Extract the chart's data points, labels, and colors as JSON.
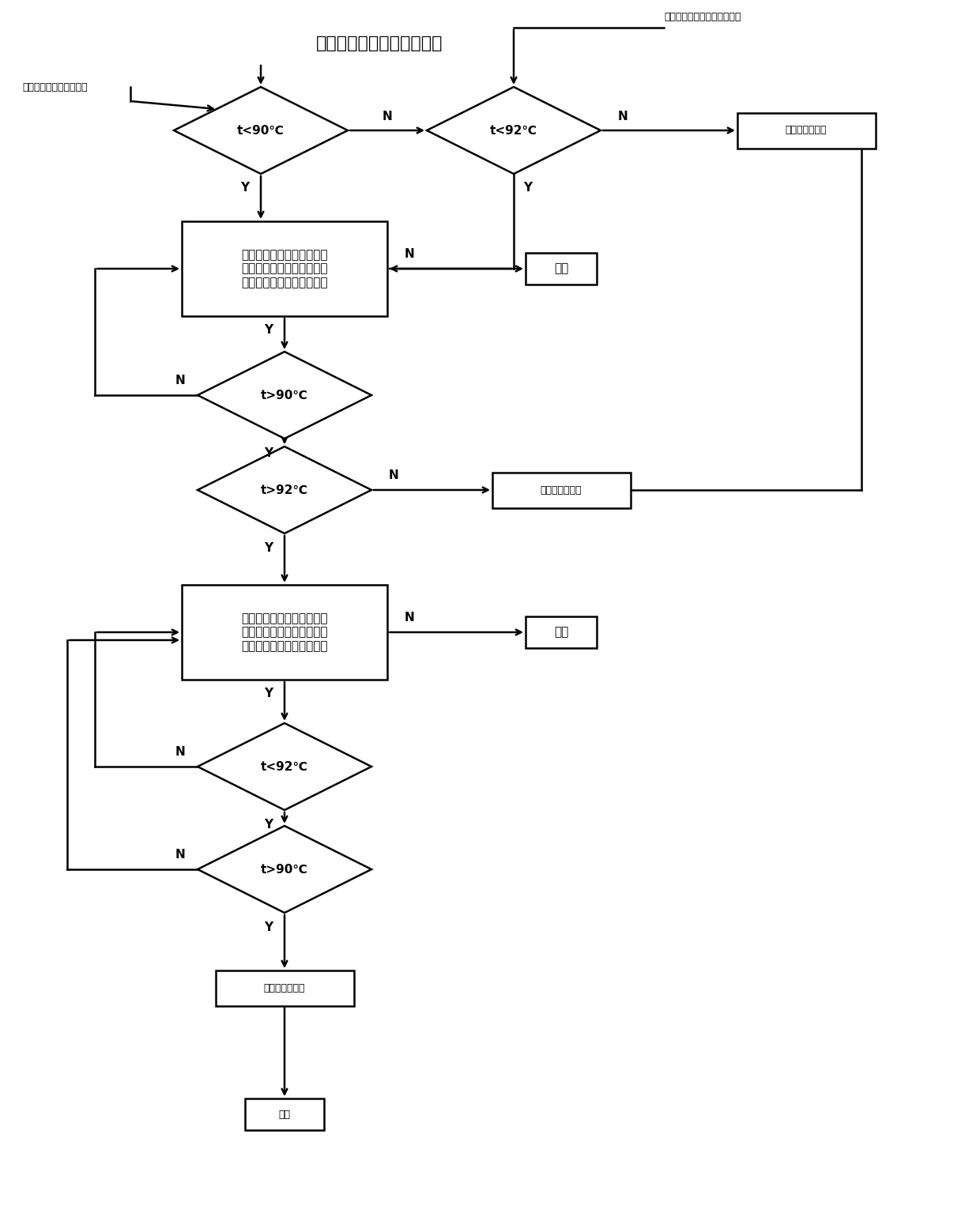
{
  "bg_color": "#ffffff",
  "line_color": "#000000",
  "title": "烟气冷却器出口原烟气温度",
  "title_fontsize": 16,
  "ann_left_text": "此温度根据工艺要求调整",
  "ann_right_text": "此温度根据工艺要求进行调整",
  "d1_text": "t<90℃",
  "d2_text": "t<92℃",
  "d3_text": "t>90℃",
  "d4_text": "t>92℃",
  "d5_text": "t<92℃",
  "d6_text": "t>90℃",
  "box1_text": "自动逐步加在烟气冷却器热\n某水循环旁路调节阀，自动\n关小烟气冷却器主路调节阀",
  "box2_text": "自动逐步关小烟气冷却器热\n某水循环旁路调节阀，自动\n加大烟气冷却器主路调节阀",
  "maintain_text": "维持该运行状态",
  "alarm_text": "报警",
  "end_text": "结束",
  "fs": 11,
  "fs_small": 9,
  "fs_ann": 9
}
